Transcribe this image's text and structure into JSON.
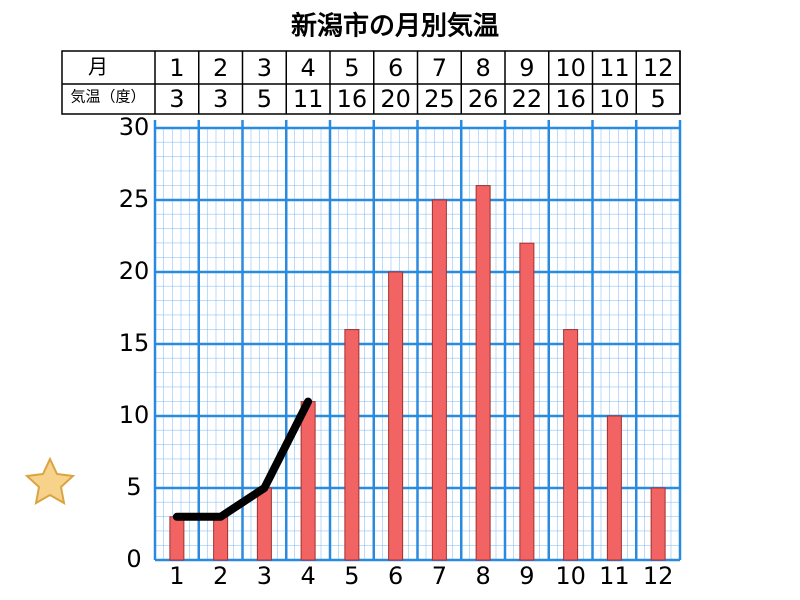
{
  "chart_data": {
    "type": "bar",
    "title": "新潟市の月別気温",
    "table_headers": [
      "月",
      "気温（度）"
    ],
    "categories": [
      "1",
      "2",
      "3",
      "4",
      "5",
      "6",
      "7",
      "8",
      "9",
      "10",
      "11",
      "12"
    ],
    "series": [
      {
        "type": "bar",
        "color": "#f26464",
        "values": [
          3,
          3,
          5,
          11,
          16,
          20,
          25,
          26,
          22,
          16,
          10,
          5
        ]
      },
      {
        "type": "line",
        "color": "#000000",
        "values": [
          3,
          3,
          5,
          11,
          null,
          null,
          null,
          null,
          null,
          null,
          null,
          null
        ]
      }
    ],
    "ylim": [
      0,
      30
    ],
    "yticks": [
      0,
      5,
      10,
      15,
      20,
      25,
      30
    ],
    "grid": true
  }
}
